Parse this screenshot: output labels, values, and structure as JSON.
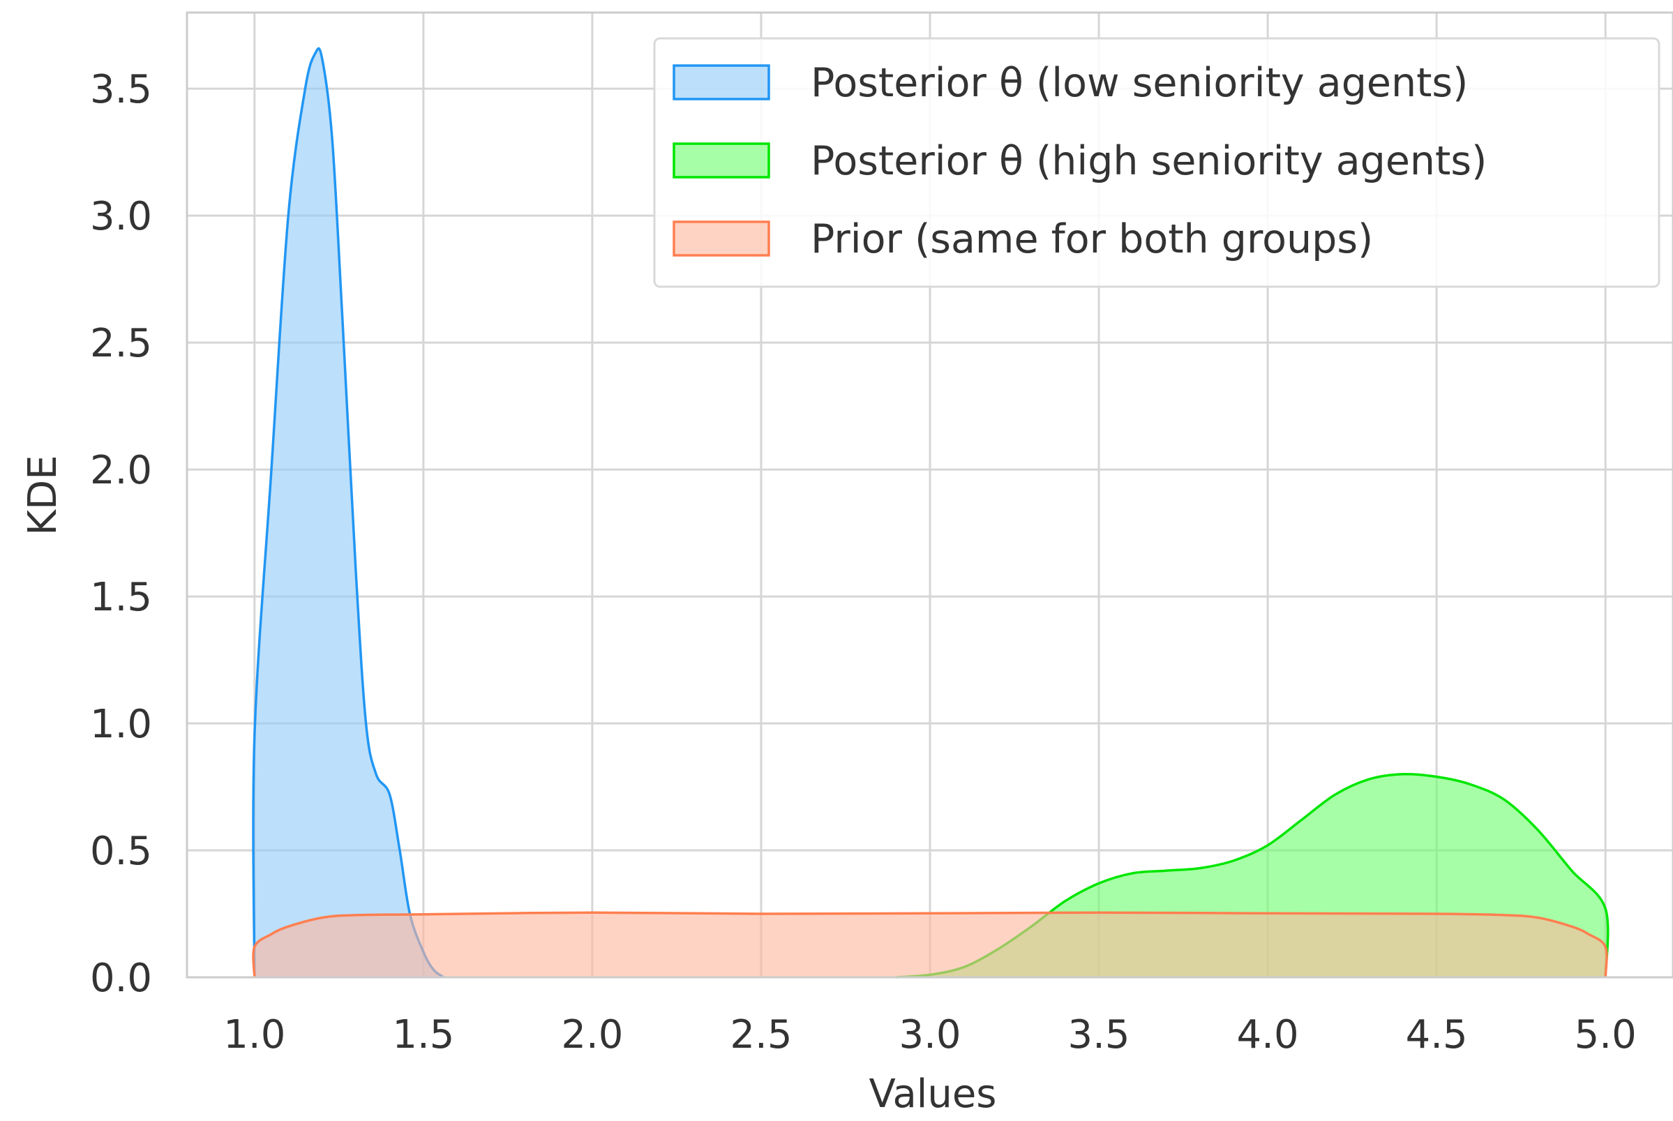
{
  "chart_data": {
    "type": "area",
    "title": "",
    "xlabel": "Values",
    "ylabel": "KDE",
    "xlim": [
      0.8,
      5.2
    ],
    "ylim": [
      0.0,
      3.8
    ],
    "xticks": [
      "1.0",
      "1.5",
      "2.0",
      "2.5",
      "3.0",
      "3.5",
      "4.0",
      "4.5",
      "5.0"
    ],
    "yticks": [
      "0.0",
      "0.5",
      "1.0",
      "1.5",
      "2.0",
      "2.5",
      "3.0",
      "3.5"
    ],
    "grid": true,
    "legend_position": "top-right",
    "series": [
      {
        "name": "Posterior θ (low seniority agents)",
        "stroke": "#2196f3",
        "fill": "#90caf9",
        "x": [
          1.0,
          1.0,
          1.05,
          1.1,
          1.15,
          1.18,
          1.2,
          1.23,
          1.26,
          1.3,
          1.33,
          1.36,
          1.4,
          1.43,
          1.46,
          1.5,
          1.53,
          1.56
        ],
        "y": [
          0.0,
          0.95,
          2.0,
          3.0,
          3.5,
          3.64,
          3.62,
          3.3,
          2.6,
          1.6,
          1.0,
          0.8,
          0.72,
          0.5,
          0.25,
          0.1,
          0.03,
          0.0
        ]
      },
      {
        "name": "Posterior θ (high seniority agents)",
        "stroke": "#00e600",
        "fill": "#6bff6b",
        "x": [
          2.9,
          3.0,
          3.1,
          3.2,
          3.3,
          3.4,
          3.5,
          3.6,
          3.7,
          3.8,
          3.9,
          4.0,
          4.1,
          4.2,
          4.3,
          4.4,
          4.5,
          4.6,
          4.7,
          4.8,
          4.9,
          5.0,
          5.0
        ],
        "y": [
          0.0,
          0.01,
          0.04,
          0.11,
          0.2,
          0.3,
          0.37,
          0.41,
          0.42,
          0.43,
          0.46,
          0.52,
          0.62,
          0.72,
          0.78,
          0.8,
          0.79,
          0.76,
          0.7,
          0.58,
          0.42,
          0.27,
          0.0
        ]
      },
      {
        "name": "Prior (same for both groups)",
        "stroke": "#ff7f50",
        "fill": "#ffb59c",
        "x": [
          1.0,
          1.0,
          1.05,
          1.1,
          1.2,
          1.3,
          1.5,
          2.0,
          2.5,
          3.0,
          3.5,
          4.0,
          4.5,
          4.7,
          4.8,
          4.9,
          4.95,
          5.0,
          5.0
        ],
        "y": [
          0.0,
          0.12,
          0.17,
          0.2,
          0.235,
          0.245,
          0.248,
          0.255,
          0.25,
          0.252,
          0.255,
          0.252,
          0.25,
          0.245,
          0.235,
          0.2,
          0.17,
          0.12,
          0.0
        ]
      }
    ]
  }
}
